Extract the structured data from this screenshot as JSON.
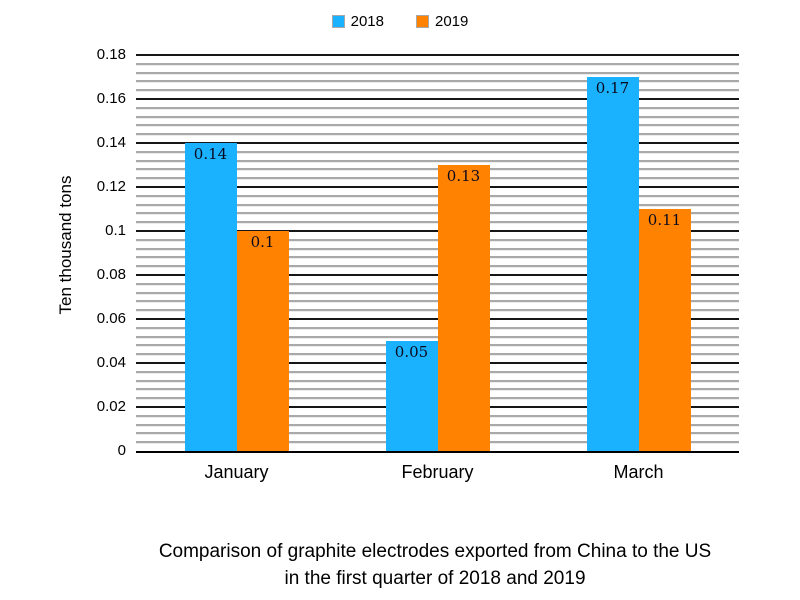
{
  "chart_data": {
    "type": "bar",
    "categories": [
      "January",
      "February",
      "March"
    ],
    "series": [
      {
        "name": "2018",
        "color": "#1AB2FF",
        "values": [
          0.14,
          0.05,
          0.17
        ],
        "labels": [
          "0.14",
          "0.05",
          "0.17"
        ]
      },
      {
        "name": "2019",
        "color": "#FF8200",
        "values": [
          0.1,
          0.13,
          0.11
        ],
        "labels": [
          "0.1",
          "0.13",
          "0.11"
        ]
      }
    ],
    "title": "Comparison of graphite electrodes exported from China to the US in the first quarter of 2018 and 2019",
    "xlabel": "",
    "ylabel": "Ten thousand tons",
    "ylim": [
      0,
      0.18
    ],
    "y_major_step": 0.02,
    "y_minor_step": 0.004,
    "y_tick_labels": [
      "0",
      "0.02",
      "0.04",
      "0.06",
      "0.08",
      "0.1",
      "0.12",
      "0.14",
      "0.16",
      "0.18"
    ],
    "grid": "horizontal, major black + minor gray",
    "legend_position": "top-center",
    "value_label_position": "inside-top"
  },
  "legend": {
    "items": [
      {
        "label": "2018",
        "color": "#1AB2FF"
      },
      {
        "label": "2019",
        "color": "#FF8200"
      }
    ]
  },
  "caption": {
    "line1": "Comparison of graphite electrodes exported from China to the US",
    "line2": "in the first quarter of 2018 and 2019"
  },
  "colors": {
    "series_2018": "#1AB2FF",
    "series_2019": "#FF8200",
    "grid_major": "#161616",
    "grid_minor": "#a9a9a9",
    "text": "#000000",
    "background": "#ffffff"
  }
}
